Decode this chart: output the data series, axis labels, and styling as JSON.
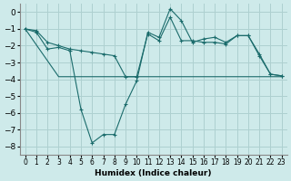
{
  "xlabel": "Humidex (Indice chaleur)",
  "background_color": "#ceeaea",
  "grid_color": "#aed0d0",
  "line_color": "#1a6b6b",
  "xlim": [
    -0.5,
    23.5
  ],
  "ylim": [
    -8.5,
    0.5
  ],
  "yticks": [
    0,
    -1,
    -2,
    -3,
    -4,
    -5,
    -6,
    -7,
    -8
  ],
  "xticks": [
    0,
    1,
    2,
    3,
    4,
    5,
    6,
    7,
    8,
    9,
    10,
    11,
    12,
    13,
    14,
    15,
    16,
    17,
    18,
    19,
    20,
    21,
    22,
    23
  ],
  "series": [
    {
      "x": [
        0,
        1,
        2,
        3,
        4,
        5,
        6,
        7,
        8,
        9,
        10,
        11,
        12,
        13,
        14,
        15,
        16,
        17,
        18,
        19,
        20,
        21,
        22,
        23
      ],
      "y": [
        -1.0,
        -1.2,
        -2.2,
        -2.1,
        -2.3,
        -5.8,
        -7.8,
        -7.3,
        -7.3,
        -5.5,
        -4.1,
        -1.2,
        -1.5,
        0.2,
        -0.5,
        -1.8,
        -1.6,
        -1.5,
        -1.8,
        -1.4,
        -1.4,
        -2.5,
        -3.7,
        -3.8
      ],
      "marker": "+"
    },
    {
      "x": [
        0,
        3,
        10,
        15,
        21,
        22,
        23
      ],
      "y": [
        -1.0,
        -3.85,
        -3.85,
        -3.85,
        -3.85,
        -3.85,
        -3.85
      ],
      "marker": null
    },
    {
      "x": [
        0,
        1,
        2,
        3,
        4,
        5,
        6,
        7,
        8,
        9,
        10,
        11,
        12,
        13,
        14,
        15,
        16,
        17,
        18,
        19,
        20,
        21,
        22,
        23
      ],
      "y": [
        -1.0,
        -1.1,
        -1.8,
        -2.0,
        -2.2,
        -2.3,
        -2.4,
        -2.5,
        -2.6,
        -3.85,
        -3.85,
        -1.3,
        -1.7,
        -0.3,
        -1.7,
        -1.7,
        -1.8,
        -1.8,
        -1.9,
        -1.4,
        -1.4,
        -2.6,
        -3.7,
        -3.8
      ],
      "marker": "+"
    }
  ]
}
